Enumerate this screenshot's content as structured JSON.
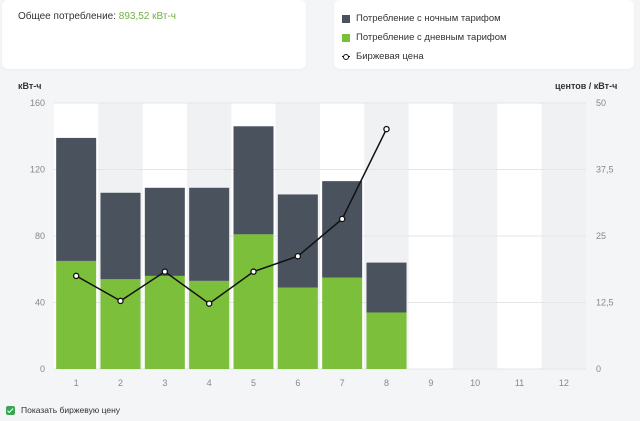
{
  "summary": {
    "total_label": "Общее потребление:",
    "total_value": "893,52 кВт-ч"
  },
  "legend": {
    "night": "Потребление с ночным тарифом",
    "day": "Потребление с дневным тарифом",
    "price": "Биржевая цена"
  },
  "axes": {
    "left_title": "кВт-ч",
    "right_title": "центов / кВт-ч"
  },
  "toggle": {
    "show_price_label": "Показать биржевую цену"
  },
  "colors": {
    "night": "#4a535d",
    "day": "#7cbf3b",
    "price": "#111111"
  },
  "chart_data": {
    "type": "bar",
    "stacked": true,
    "categories": [
      "1",
      "2",
      "3",
      "4",
      "5",
      "6",
      "7",
      "8",
      "9",
      "10",
      "11",
      "12"
    ],
    "series": [
      {
        "name": "Потребление с дневным тарифом",
        "values": [
          65,
          54,
          56,
          53,
          81,
          49,
          55,
          34,
          null,
          null,
          null,
          null
        ]
      },
      {
        "name": "Потребление с ночным тарифом",
        "values": [
          74,
          52,
          53,
          56,
          65,
          56,
          58,
          30,
          null,
          null,
          null,
          null
        ]
      }
    ],
    "line_series": {
      "name": "Биржевая цена",
      "axis": "right",
      "values": [
        17.5,
        12.8,
        18.3,
        12.3,
        18.3,
        21.2,
        28.2,
        45.1,
        null,
        null,
        null,
        null
      ]
    },
    "ylabel": "кВт-ч",
    "ylabel_right": "центов / кВт-ч",
    "ylim": [
      0,
      160
    ],
    "ylim_right": [
      0,
      50
    ],
    "yticks": [
      "0",
      "40",
      "80",
      "120",
      "160"
    ],
    "yticks_right": [
      "0",
      "12,5",
      "25",
      "37,5",
      "50"
    ]
  }
}
